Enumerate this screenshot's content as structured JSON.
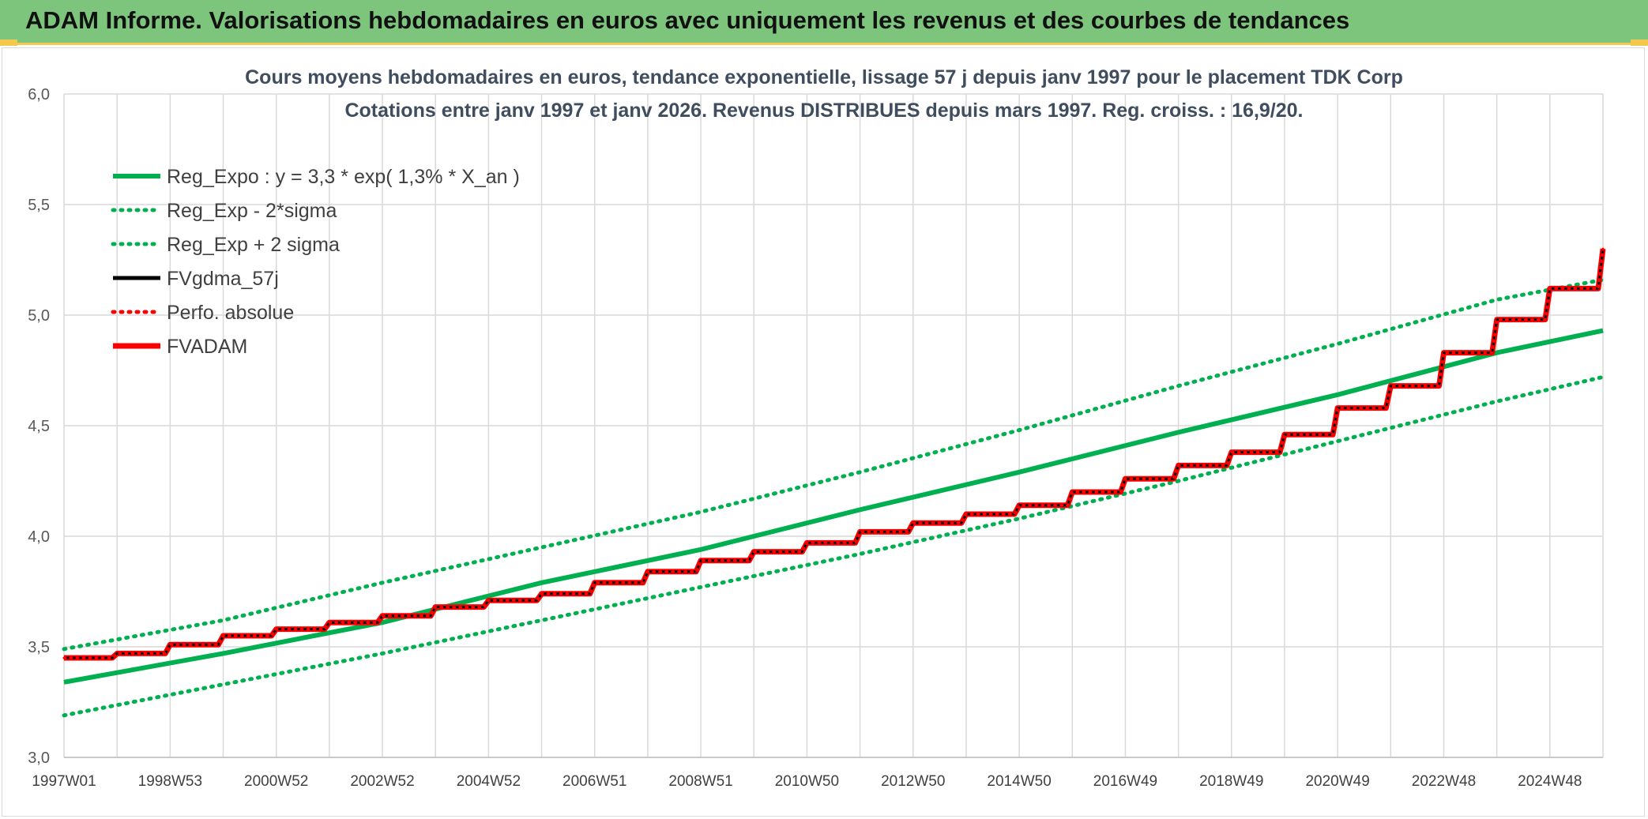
{
  "header": {
    "title": "ADAM Informe. Valorisations hebdomadaires en euros avec uniquement les revenus et des courbes de tendances",
    "background": "#7dc57c",
    "accent": "#f2c94c"
  },
  "chart_data": {
    "type": "line",
    "title_lines": [
      "Cours moyens hebdomadaires en euros, tendance exponentielle, lissage 57 j depuis janv 1997 pour le placement TDK Corp",
      "Cotations entre janv 1997 et janv 2026. Revenus DISTRIBUES depuis mars 1997. Reg. croiss. : 16,9/20."
    ],
    "xlabel": "",
    "ylabel": "",
    "ylim": [
      3.0,
      6.0
    ],
    "yticks": [
      "3,0",
      "3,5",
      "4,0",
      "4,5",
      "5,0",
      "5,5",
      "6,0"
    ],
    "yticks_values": [
      3.0,
      3.5,
      4.0,
      4.5,
      5.0,
      5.5,
      6.0
    ],
    "xlim": [
      1997.0,
      2026.0
    ],
    "xticks": [
      "1997W01",
      "1998W53",
      "2000W52",
      "2002W52",
      "2004W52",
      "2006W51",
      "2008W51",
      "2010W50",
      "2012W50",
      "2014W50",
      "2016W49",
      "2018W49",
      "2020W49",
      "2022W48",
      "2024W48"
    ],
    "xticks_values": [
      1997.0,
      1999.0,
      2001.0,
      2003.0,
      2005.0,
      2007.0,
      2009.0,
      2011.0,
      2013.0,
      2015.0,
      2017.0,
      2019.0,
      2021.0,
      2023.0,
      2025.0
    ],
    "grid": true,
    "legend_position": "top-left",
    "series": [
      {
        "name": "Reg_Expo : y = 3,3 * exp( 1,3% *  X_an )",
        "style": "solid",
        "color": "#00b050",
        "x": [
          1997,
          2000,
          2003,
          2006,
          2009,
          2012,
          2015,
          2018,
          2021,
          2024,
          2026
        ],
        "values": [
          3.34,
          3.47,
          3.61,
          3.79,
          3.94,
          4.12,
          4.29,
          4.47,
          4.64,
          4.83,
          4.93
        ]
      },
      {
        "name": "Reg_Exp - 2*sigma",
        "style": "dotted",
        "color": "#00b050",
        "x": [
          1997,
          2000,
          2003,
          2006,
          2009,
          2012,
          2015,
          2018,
          2021,
          2024,
          2026
        ],
        "values": [
          3.19,
          3.33,
          3.47,
          3.62,
          3.77,
          3.92,
          4.08,
          4.25,
          4.43,
          4.61,
          4.72
        ]
      },
      {
        "name": "Reg_Exp + 2 sigma",
        "style": "dotted",
        "color": "#00b050",
        "x": [
          1997,
          2000,
          2003,
          2006,
          2009,
          2012,
          2015,
          2018,
          2021,
          2024,
          2026
        ],
        "values": [
          3.49,
          3.62,
          3.79,
          3.95,
          4.11,
          4.29,
          4.48,
          4.68,
          4.87,
          5.07,
          5.16
        ]
      },
      {
        "name": "FVgdma_57j",
        "style": "solid",
        "color": "#000000",
        "x": [
          1997,
          1998,
          1999,
          2000,
          2001,
          2002,
          2003,
          2004,
          2005,
          2006,
          2007,
          2008,
          2009,
          2010,
          2011,
          2012,
          2013,
          2014,
          2015,
          2016,
          2017,
          2018,
          2019,
          2020,
          2021,
          2022,
          2023,
          2024,
          2025,
          2026
        ],
        "values": [
          3.45,
          3.47,
          3.51,
          3.55,
          3.58,
          3.61,
          3.64,
          3.68,
          3.71,
          3.74,
          3.79,
          3.84,
          3.89,
          3.93,
          3.97,
          4.02,
          4.06,
          4.1,
          4.14,
          4.2,
          4.26,
          4.32,
          4.38,
          4.46,
          4.58,
          4.68,
          4.83,
          4.98,
          5.12,
          5.3
        ]
      },
      {
        "name": "Perfo. absolue",
        "style": "dotted",
        "color": "#ff0000",
        "x": [
          1997,
          1998,
          1999,
          2000,
          2001,
          2002,
          2003,
          2004,
          2005,
          2006,
          2007,
          2008,
          2009,
          2010,
          2011,
          2012,
          2013,
          2014,
          2015,
          2016,
          2017,
          2018,
          2019,
          2020,
          2021,
          2022,
          2023,
          2024,
          2025,
          2026
        ],
        "values": [
          3.45,
          3.47,
          3.51,
          3.55,
          3.58,
          3.61,
          3.64,
          3.68,
          3.71,
          3.74,
          3.79,
          3.84,
          3.89,
          3.93,
          3.97,
          4.02,
          4.06,
          4.1,
          4.14,
          4.2,
          4.26,
          4.32,
          4.38,
          4.46,
          4.58,
          4.68,
          4.83,
          4.98,
          5.12,
          5.3
        ]
      },
      {
        "name": "FVADAM",
        "style": "solid",
        "color": "#ff0000",
        "x": [
          1997,
          1998,
          1999,
          2000,
          2001,
          2002,
          2003,
          2004,
          2005,
          2006,
          2007,
          2008,
          2009,
          2010,
          2011,
          2012,
          2013,
          2014,
          2015,
          2016,
          2017,
          2018,
          2019,
          2020,
          2021,
          2022,
          2023,
          2024,
          2025,
          2026
        ],
        "values": [
          3.45,
          3.47,
          3.51,
          3.55,
          3.58,
          3.61,
          3.64,
          3.68,
          3.71,
          3.74,
          3.79,
          3.84,
          3.89,
          3.93,
          3.97,
          4.02,
          4.06,
          4.1,
          4.14,
          4.2,
          4.26,
          4.32,
          4.38,
          4.46,
          4.58,
          4.68,
          4.83,
          4.98,
          5.12,
          5.3
        ]
      }
    ]
  }
}
